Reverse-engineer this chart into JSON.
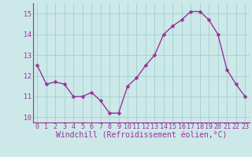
{
  "x": [
    0,
    1,
    2,
    3,
    4,
    5,
    6,
    7,
    8,
    9,
    10,
    11,
    12,
    13,
    14,
    15,
    16,
    17,
    18,
    19,
    20,
    21,
    22,
    23
  ],
  "y": [
    12.5,
    11.6,
    11.7,
    11.6,
    11.0,
    11.0,
    11.2,
    10.8,
    10.2,
    10.2,
    11.5,
    11.9,
    12.5,
    13.0,
    14.0,
    14.4,
    14.7,
    15.1,
    15.1,
    14.7,
    14.0,
    12.3,
    11.6,
    11.0
  ],
  "line_color": "#993399",
  "marker_color": "#993399",
  "bg_color": "#cce8e8",
  "grid_color": "#99cccc",
  "xlabel": "Windchill (Refroidissement éolien,°C)",
  "ylim": [
    9.75,
    15.5
  ],
  "xlim": [
    -0.5,
    23.5
  ],
  "yticks": [
    10,
    11,
    12,
    13,
    14,
    15
  ],
  "xticks": [
    0,
    1,
    2,
    3,
    4,
    5,
    6,
    7,
    8,
    9,
    10,
    11,
    12,
    13,
    14,
    15,
    16,
    17,
    18,
    19,
    20,
    21,
    22,
    23
  ],
  "tick_label_fontsize": 6.0,
  "xlabel_fontsize": 7.0,
  "line_width": 1.0,
  "marker_size": 2.5
}
